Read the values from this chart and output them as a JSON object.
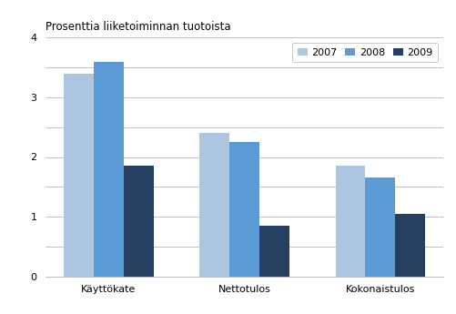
{
  "categories": [
    "Käyttökate",
    "Nettotulos",
    "Kokonaistulos"
  ],
  "series": {
    "2007": [
      3.4,
      2.4,
      1.85
    ],
    "2008": [
      3.6,
      2.25,
      1.65
    ],
    "2009": [
      1.85,
      0.85,
      1.05
    ]
  },
  "colors": {
    "2007": "#adc6e0",
    "2008": "#5b9bd5",
    "2009": "#243f60"
  },
  "ylabel": "Prosenttia liiketoiminnan tuotoista",
  "ylim": [
    0,
    4
  ],
  "yticks": [
    0,
    0.5,
    1.0,
    1.5,
    2.0,
    2.5,
    3.0,
    3.5,
    4.0
  ],
  "ytick_labels": [
    "0",
    "",
    "1",
    "",
    "2",
    "",
    "3",
    "",
    "4"
  ],
  "legend_labels": [
    "2007",
    "2008",
    "2009"
  ],
  "bar_width": 0.22,
  "background_color": "#ffffff",
  "plot_bg_color": "#ffffff",
  "grid_color": "#c0c0c0",
  "title_fontsize": 8.5,
  "tick_fontsize": 8,
  "legend_fontsize": 8
}
